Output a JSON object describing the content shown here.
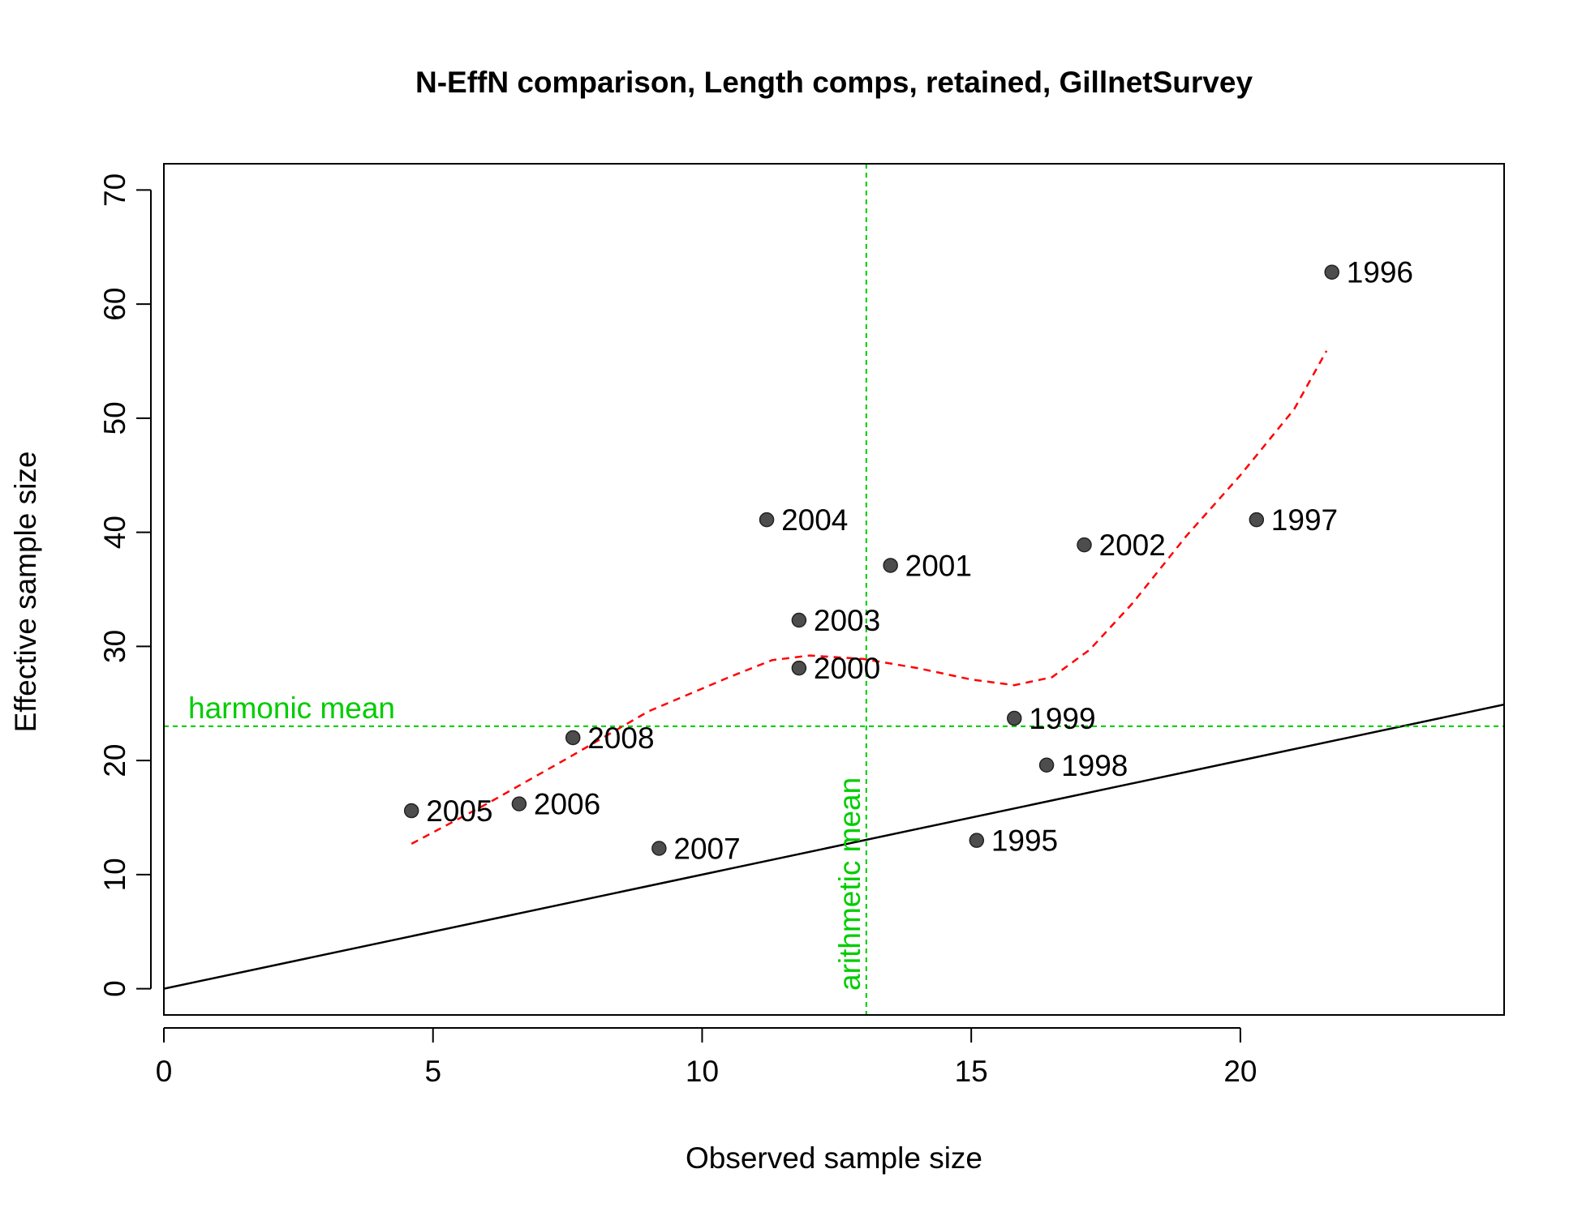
{
  "colors": {
    "points": "#4d4d4d",
    "smoother": "#ff0000",
    "reference_lines": "#00cc00",
    "identity_line": "#000000"
  },
  "chart_data": {
    "type": "scatter",
    "title": "N-EffN comparison, Length comps, retained, GillnetSurvey",
    "xlabel": "Observed sample size",
    "ylabel": "Effective sample size",
    "xlim": [
      0,
      24.9
    ],
    "ylim": [
      -2.3,
      72.3
    ],
    "x_ticks": [
      0,
      5,
      10,
      15,
      20
    ],
    "y_ticks": [
      0,
      10,
      20,
      30,
      40,
      50,
      60,
      70
    ],
    "grid": false,
    "points": [
      {
        "label": "1995",
        "x": 15.1,
        "y": 13.0
      },
      {
        "label": "1996",
        "x": 21.7,
        "y": 62.8
      },
      {
        "label": "1997",
        "x": 20.3,
        "y": 41.1
      },
      {
        "label": "1998",
        "x": 16.4,
        "y": 19.6
      },
      {
        "label": "1999",
        "x": 15.8,
        "y": 23.7
      },
      {
        "label": "2000",
        "x": 11.8,
        "y": 28.1
      },
      {
        "label": "2001",
        "x": 13.5,
        "y": 37.1
      },
      {
        "label": "2002",
        "x": 17.1,
        "y": 38.9
      },
      {
        "label": "2003",
        "x": 11.8,
        "y": 32.3
      },
      {
        "label": "2004",
        "x": 11.2,
        "y": 41.1
      },
      {
        "label": "2005",
        "x": 4.6,
        "y": 15.6
      },
      {
        "label": "2006",
        "x": 6.6,
        "y": 16.2
      },
      {
        "label": "2007",
        "x": 9.2,
        "y": 12.3
      },
      {
        "label": "2008",
        "x": 7.6,
        "y": 22.0
      }
    ],
    "smoother": {
      "x": [
        4.6,
        6.0,
        7.5,
        9.0,
        10.5,
        11.3,
        12.0,
        13.0,
        14.0,
        15.0,
        15.8,
        16.5,
        17.2,
        18.0,
        19.0,
        20.0,
        21.0,
        21.6
      ],
      "y": [
        12.7,
        16.2,
        20.2,
        24.3,
        27.3,
        28.8,
        29.2,
        28.9,
        28.1,
        27.1,
        26.6,
        27.3,
        29.7,
        33.8,
        39.7,
        45.0,
        50.8,
        55.9
      ]
    },
    "identity_line": {
      "slope": 1,
      "intercept": 0
    },
    "arithmetic_mean": {
      "label": "arithmetic mean",
      "x": 13.05
    },
    "harmonic_mean": {
      "label": "harmonic mean",
      "y": 23.0
    }
  }
}
